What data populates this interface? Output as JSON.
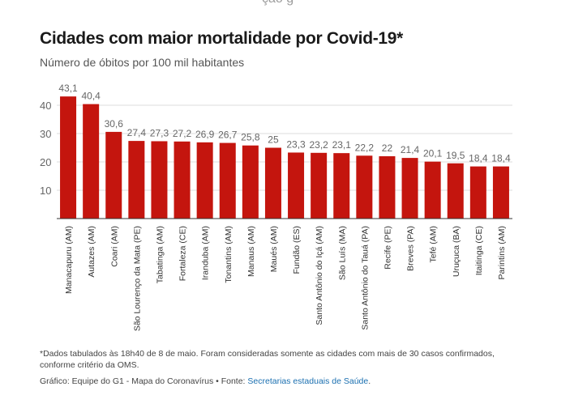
{
  "top_cut_text": "ção g",
  "chart_data": {
    "type": "bar",
    "title": "Cidades com maior mortalidade por Covid-19*",
    "subtitle": "Número de óbitos por 100 mil habitantes",
    "xlabel": "",
    "ylabel": "",
    "ylim": [
      0,
      45
    ],
    "yticks": [
      10,
      20,
      30,
      40
    ],
    "grid": true,
    "bar_color": "#c4150e",
    "categories": [
      "Manacapuru (AM)",
      "Autazes (AM)",
      "Coari (AM)",
      "São Lourenço da Mata (PE)",
      "Tabatinga (AM)",
      "Fortaleza (CE)",
      "Iranduba (AM)",
      "Tonantins (AM)",
      "Manaus (AM)",
      "Maués (AM)",
      "Fundão (ES)",
      "Santo Antônio do Içá (AM)",
      "São Luís (MA)",
      "Santo Antônio do Tauá (PA)",
      "Recife (PE)",
      "Breves (PA)",
      "Tefé (AM)",
      "Uruçuca (BA)",
      "Itaitinga (CE)",
      "Parintins (AM)"
    ],
    "values": [
      43.1,
      40.4,
      30.6,
      27.4,
      27.3,
      27.2,
      26.9,
      26.7,
      25.8,
      25,
      23.3,
      23.2,
      23.1,
      22.2,
      22,
      21.4,
      20.1,
      19.5,
      18.4,
      18.4
    ],
    "value_labels": [
      "43,1",
      "40,4",
      "30,6",
      "27,4",
      "27,3",
      "27,2",
      "26,9",
      "26,7",
      "25,8",
      "25",
      "23,3",
      "23,2",
      "23,1",
      "22,2",
      "22",
      "21,4",
      "20,1",
      "19,5",
      "18,4",
      "18,4"
    ]
  },
  "footnote": "*Dados tabulados às 18h40 de 8 de maio. Foram consideradas somente as cidades com mais de 30 casos confirmados, conforme critério da OMS.",
  "credit": {
    "prefix": "Gráfico: Equipe do G1 - Mapa do Coronavírus • Fonte: ",
    "source": "Secretarias estaduais de Saúde",
    "suffix": "."
  }
}
